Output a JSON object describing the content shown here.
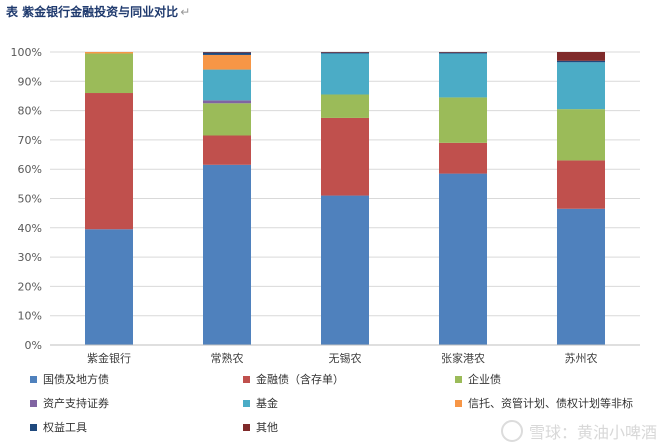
{
  "header": {
    "title": "表  紫金银行金融投资与同业对比",
    "mark": "↵"
  },
  "watermark": {
    "text": "雪球：黄油小啤酒"
  },
  "chart_data": {
    "type": "bar",
    "stacked": true,
    "title": "",
    "xlabel": "",
    "ylabel": "",
    "ylim": [
      0,
      100
    ],
    "yticks": [
      "0%",
      "10%",
      "20%",
      "30%",
      "40%",
      "50%",
      "60%",
      "70%",
      "80%",
      "90%",
      "100%"
    ],
    "grid": true,
    "legend_position": "bottom",
    "categories": [
      "紫金银行",
      "常熟农",
      "无锡农",
      "张家港农",
      "苏州农"
    ],
    "series": [
      {
        "name": "国债及地方债",
        "color": "#4f81bd",
        "values": [
          39.5,
          61.5,
          51.0,
          58.5,
          46.5
        ]
      },
      {
        "name": "金融债（含存单）",
        "color": "#c0504d",
        "values": [
          46.5,
          10.0,
          26.5,
          10.5,
          16.5
        ]
      },
      {
        "name": "企业债",
        "color": "#9bbb59",
        "values": [
          13.5,
          11.0,
          8.0,
          15.5,
          17.5
        ]
      },
      {
        "name": "资产支持证券",
        "color": "#8064a2",
        "values": [
          0,
          1.0,
          0,
          0,
          0
        ]
      },
      {
        "name": "基金",
        "color": "#4bacc6",
        "values": [
          0,
          10.5,
          14.0,
          15.0,
          16.0
        ]
      },
      {
        "name": "信托、资管计划、债权计划等非标",
        "color": "#f79646",
        "values": [
          0.5,
          5.0,
          0,
          0,
          0
        ]
      },
      {
        "name": "权益工具",
        "color": "#1f497d",
        "values": [
          0,
          0.8,
          0.3,
          0.3,
          0.5
        ]
      },
      {
        "name": "其他",
        "color": "#7f2a2a",
        "values": [
          0,
          0.2,
          0.2,
          0.2,
          3.0
        ]
      }
    ]
  }
}
